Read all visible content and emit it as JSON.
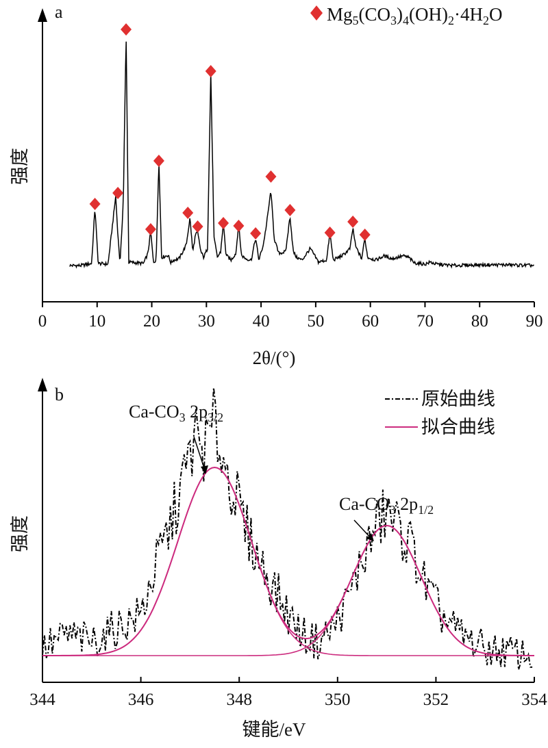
{
  "chart_data": [
    {
      "panel": "a",
      "type": "line",
      "xlabel": "2θ/(°)",
      "ylabel": "强度",
      "xlim": [
        0,
        90
      ],
      "xticks": [
        0,
        10,
        20,
        30,
        40,
        50,
        60,
        70,
        80,
        90
      ],
      "legend": {
        "position": "top-right",
        "marker": "diamond",
        "color": "#e03030",
        "label": "Mg5(CO3)4(OH)2·4H2O"
      },
      "series": [
        {
          "color": "#000000",
          "x": [
            5,
            7,
            9,
            9.6,
            10.2,
            12,
            13.4,
            13.8,
            14.2,
            14.8,
            15.3,
            15.8,
            17,
            18.5,
            19.3,
            19.8,
            20.3,
            20.8,
            21.3,
            21.8,
            23,
            23.5,
            24,
            25,
            26.3,
            27,
            27.5,
            28,
            28.4,
            29,
            29.5,
            30.2,
            30.8,
            31.4,
            32,
            32.6,
            33.1,
            33.6,
            34.5,
            35.4,
            35.9,
            36.4,
            37.2,
            38.2,
            39,
            39.6,
            40.4,
            41,
            41.8,
            42.4,
            43.2,
            44.5,
            45.3,
            45.9,
            46.5,
            47.5,
            49,
            50.5,
            52,
            52.6,
            53.2,
            55,
            56.3,
            56.8,
            57.3,
            58.4,
            59,
            59.5,
            61,
            62.5,
            64,
            66,
            67,
            68,
            70,
            71,
            72,
            75,
            80,
            85,
            90
          ],
          "y": [
            0,
            0,
            3,
            85,
            3,
            2,
            101,
            45,
            3,
            95,
            340,
            5,
            4,
            3,
            18,
            50,
            5,
            8,
            155,
            12,
            15,
            4,
            8,
            10,
            30,
            70,
            20,
            45,
            48,
            20,
            12,
            25,
            282,
            40,
            12,
            20,
            62,
            15,
            8,
            18,
            62,
            15,
            10,
            8,
            40,
            8,
            30,
            60,
            110,
            40,
            18,
            20,
            72,
            20,
            12,
            8,
            25,
            5,
            8,
            48,
            8,
            15,
            25,
            55,
            28,
            10,
            40,
            12,
            8,
            14,
            10,
            14,
            12,
            4,
            2,
            5,
            2,
            0,
            1,
            1,
            0
          ]
        }
      ],
      "markers_x": [
        9.6,
        13.8,
        15.3,
        19.8,
        21.3,
        26.6,
        28.4,
        30.8,
        33.1,
        35.9,
        39.0,
        41.8,
        45.3,
        52.6,
        56.8,
        59.0
      ],
      "markers_y": [
        90,
        106,
        345,
        53,
        153,
        77,
        57,
        284,
        62,
        58,
        47,
        130,
        81,
        48,
        64,
        45
      ]
    },
    {
      "panel": "b",
      "type": "line",
      "xlabel": "键能/eV",
      "ylabel": "强度",
      "xlim": [
        344,
        354
      ],
      "xticks": [
        344,
        346,
        348,
        350,
        352,
        354
      ],
      "legend": {
        "position": "top-right"
      },
      "series": [
        {
          "name": "原始曲线",
          "style": "dash-dot",
          "color": "#000000",
          "x": [
            344,
            344.5,
            345,
            345.5,
            346,
            346.3,
            346.6,
            346.9,
            347.1,
            347.3,
            347.5,
            347.7,
            347.9,
            348.1,
            348.4,
            348.7,
            349,
            349.3,
            349.6,
            349.9,
            350.2,
            350.5,
            350.8,
            351,
            351.2,
            351.5,
            351.8,
            352.1,
            352.5,
            353,
            353.5,
            354
          ],
          "y": [
            4,
            8,
            6,
            10,
            14,
            28,
            40,
            55,
            66,
            62,
            70,
            58,
            50,
            40,
            30,
            22,
            14,
            8,
            6,
            10,
            18,
            30,
            40,
            44,
            40,
            34,
            22,
            14,
            8,
            4,
            3,
            2
          ]
        },
        {
          "name": "拟合曲线",
          "style": "solid",
          "color": "#cc2b7e",
          "peaks": [
            {
              "center": 347.5,
              "amplitude": 55,
              "sigma": 0.75
            },
            {
              "center": 351.0,
              "amplitude": 38,
              "sigma": 0.7
            }
          ],
          "baseline": 2
        }
      ],
      "annotations": [
        {
          "label_html": "Ca-CO<tspan font-size='18' dy='6'>3</tspan><tspan dy='-6'> 2p</tspan><tspan font-size='18' dy='6'>3/2</tspan>",
          "text": "Ca-CO3 2p3/2",
          "x": 347.5,
          "y": 55
        },
        {
          "label_html": "Ca-CO<tspan font-size='18' dy='6'>3</tspan><tspan dy='-6'> 2p</tspan><tspan font-size='18' dy='6'>1/2</tspan>",
          "text": "Ca-CO3 2p1/2",
          "x": 350.8,
          "y": 37
        }
      ]
    }
  ]
}
